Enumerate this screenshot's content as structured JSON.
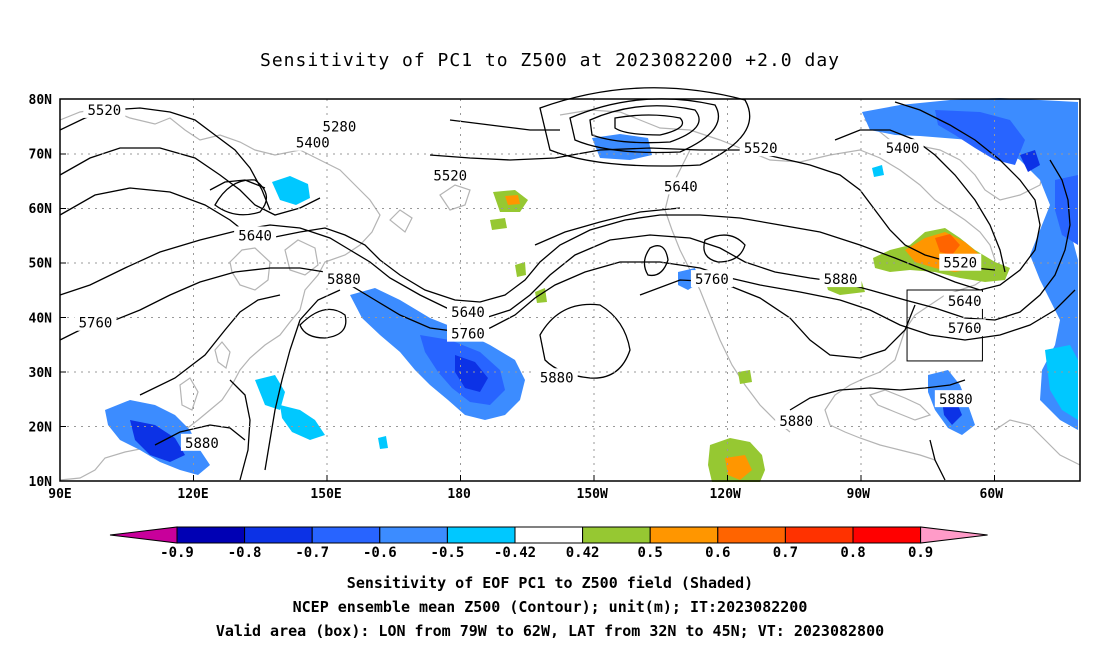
{
  "title": "Sensitivity of PC1 to Z500 at 2023082200 +2.0 day",
  "lat_labels": [
    "80N",
    "70N",
    "60N",
    "50N",
    "40N",
    "30N",
    "20N",
    "10N"
  ],
  "lon_labels": [
    "90E",
    "120E",
    "150E",
    "180",
    "150W",
    "120W",
    "90W",
    "60W"
  ],
  "contour_labels": [
    {
      "text": "5520",
      "lon": 100,
      "lat": 78
    },
    {
      "text": "5280",
      "lon": 153,
      "lat": 75
    },
    {
      "text": "5400",
      "lon": 147,
      "lat": 72
    },
    {
      "text": "5520",
      "lon": 178,
      "lat": 66
    },
    {
      "text": "5520",
      "lon": 248,
      "lat": 71
    },
    {
      "text": "5400",
      "lon": 280,
      "lat": 71
    },
    {
      "text": "5640",
      "lon": 230,
      "lat": 64
    },
    {
      "text": "5640",
      "lon": 134,
      "lat": 55
    },
    {
      "text": "5880",
      "lon": 154,
      "lat": 47
    },
    {
      "text": "5760",
      "lon": 98,
      "lat": 39
    },
    {
      "text": "5640",
      "lon": 182,
      "lat": 41
    },
    {
      "text": "5760",
      "lon": 182,
      "lat": 37
    },
    {
      "text": "5760",
      "lon": 237,
      "lat": 47
    },
    {
      "text": "5880",
      "lon": 266,
      "lat": 47
    },
    {
      "text": "5520",
      "lon": 293,
      "lat": 50
    },
    {
      "text": "5640",
      "lon": 294,
      "lat": 43
    },
    {
      "text": "5760",
      "lon": 294,
      "lat": 38
    },
    {
      "text": "5880",
      "lon": 202,
      "lat": 29
    },
    {
      "text": "5880",
      "lon": 292,
      "lat": 25
    },
    {
      "text": "5880",
      "lon": 256,
      "lat": 21
    },
    {
      "text": "5880",
      "lon": 122,
      "lat": 17
    }
  ],
  "colorbar": {
    "labels": [
      "-0.9",
      "-0.8",
      "-0.7",
      "-0.6",
      "-0.5",
      "-0.42",
      "0.42",
      "0.5",
      "0.6",
      "0.7",
      "0.8",
      "0.9"
    ],
    "colors": [
      "#0000b4",
      "#0c32e6",
      "#2864ff",
      "#3c8cff",
      "#00c8ff",
      "#ffffff",
      "#96c832",
      "#ff9600",
      "#ff6400",
      "#ff3200",
      "#ff0000"
    ],
    "low_color": "#c8009b",
    "high_color": "#ff9bc8"
  },
  "box": {
    "lon_min": 281,
    "lon_max": 298,
    "lat_min": 32,
    "lat_max": 45
  },
  "captions": [
    "Sensitivity of EOF PC1 to Z500 field (Shaded)",
    "NCEP ensemble mean Z500 (Contour); unit(m); IT:2023082200",
    "Valid area (box): LON from 79W to 62W, LAT from 32N to 45N; VT: 2023082800"
  ]
}
